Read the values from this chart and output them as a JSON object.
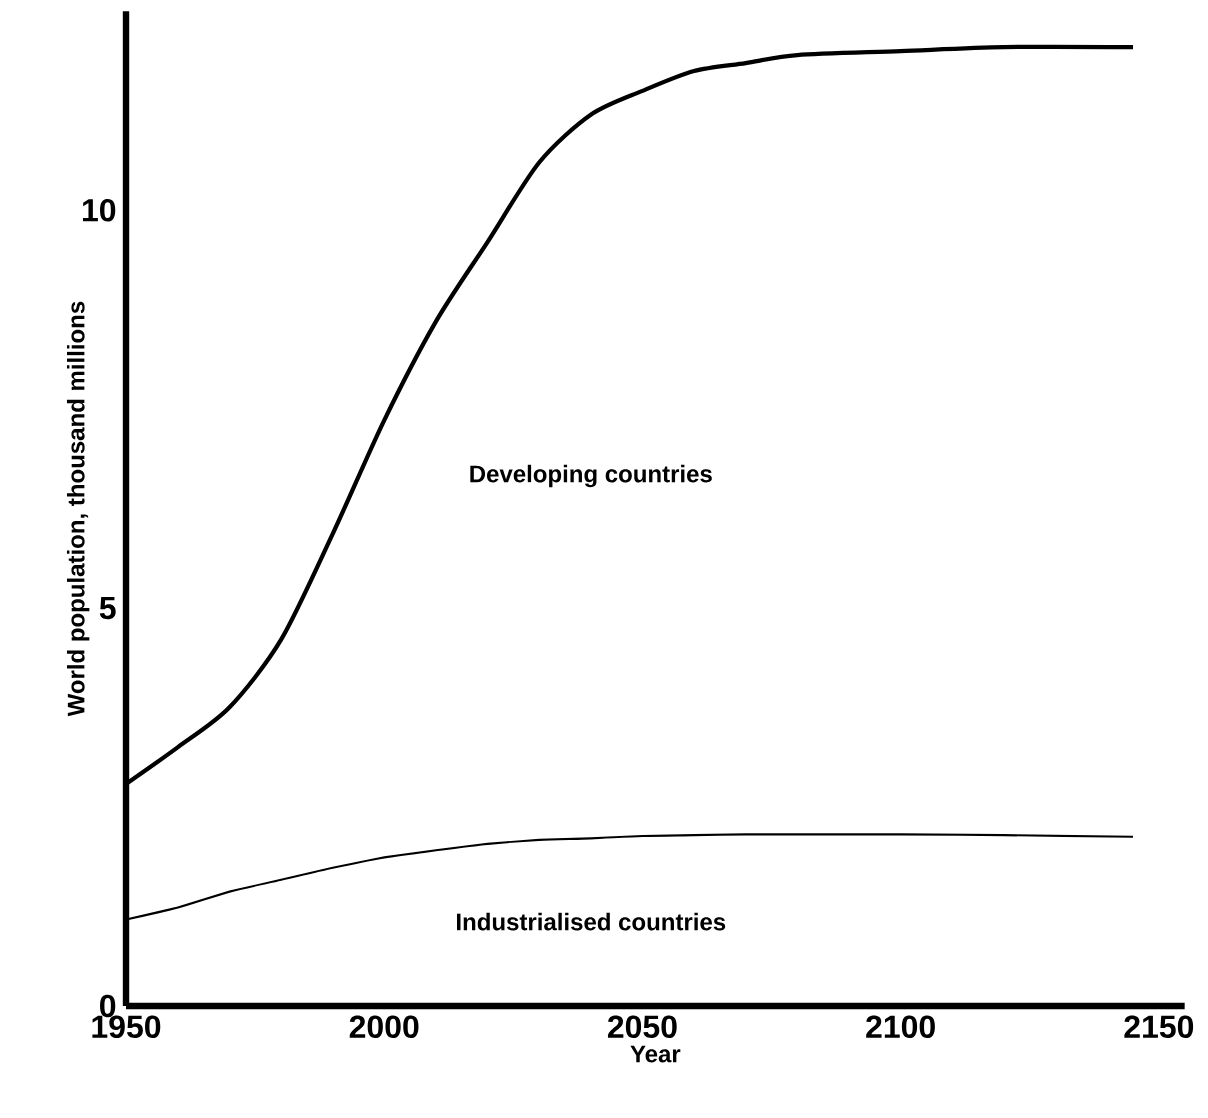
{
  "chart_data": {
    "type": "area",
    "stacked": true,
    "xlabel": "Year",
    "ylabel": "World population, thousand millions",
    "x": [
      1950,
      1960,
      1970,
      1980,
      1990,
      2000,
      2010,
      2020,
      2030,
      2040,
      2050,
      2060,
      2070,
      2080,
      2100,
      2120,
      2145
    ],
    "series": [
      {
        "name": "Industrialised countries",
        "color": "#000000",
        "values": [
          1.1,
          1.25,
          1.45,
          1.6,
          1.75,
          1.88,
          1.97,
          2.05,
          2.1,
          2.12,
          2.15,
          2.16,
          2.17,
          2.17,
          2.17,
          2.16,
          2.14
        ]
      },
      {
        "name": "Developing countries",
        "color": "#000000",
        "values": [
          1.69,
          2.0,
          2.3,
          3.0,
          4.18,
          5.48,
          6.63,
          7.55,
          8.5,
          9.08,
          9.35,
          9.59,
          9.68,
          9.78,
          9.83,
          9.89,
          9.91
        ]
      }
    ],
    "xlim": [
      1950,
      2155
    ],
    "ylim": [
      0,
      12.5
    ],
    "xticks": [
      1950,
      2000,
      2050,
      2100,
      2150
    ],
    "yticks": [
      0,
      5,
      10
    ],
    "grid": false,
    "legend": false
  }
}
